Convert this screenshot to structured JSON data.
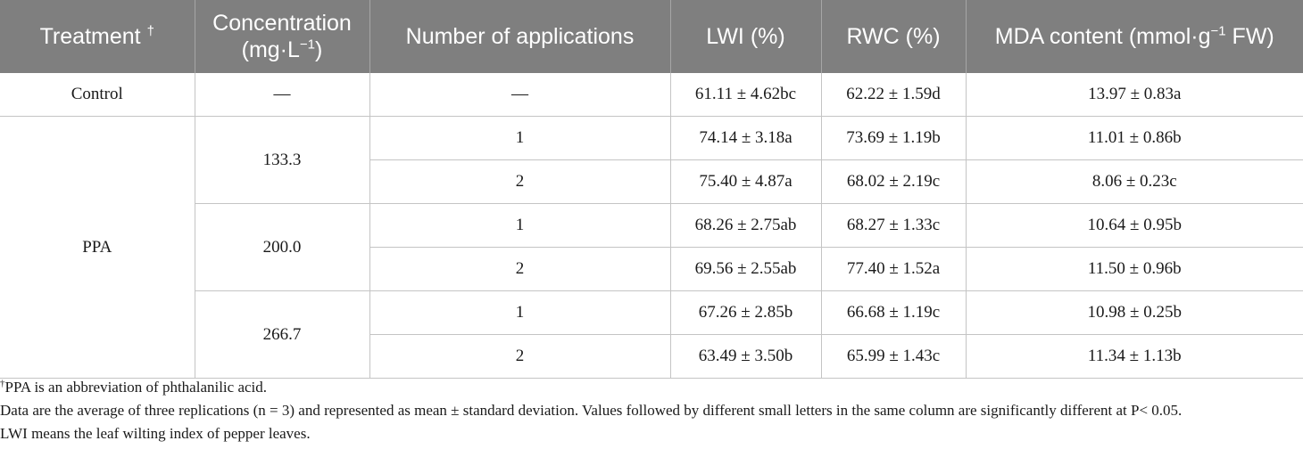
{
  "table": {
    "headers": {
      "treatment": "Treatment",
      "treatment_mark": "†",
      "concentration": "Concentration",
      "concentration_unit": "(mg·L",
      "concentration_exp": "−1",
      "concentration_close": ")",
      "applications": "Number of applications",
      "lwi": "LWI (%)",
      "rwc": "RWC (%)",
      "mda": "MDA content (mmol·g",
      "mda_exp": "−1",
      "mda_tail": " FW)"
    },
    "control": {
      "treatment": "Control",
      "concentration": "—",
      "applications": "—",
      "lwi": "61.11 ± 4.62bc",
      "rwc": "62.22 ± 1.59d",
      "mda": "13.97 ± 0.83a"
    },
    "ppa": {
      "treatment": "PPA",
      "groups": [
        {
          "concentration": "133.3",
          "rows": [
            {
              "applications": "1",
              "lwi": "74.14 ± 3.18a",
              "rwc": "73.69 ± 1.19b",
              "mda": "11.01 ± 0.86b"
            },
            {
              "applications": "2",
              "lwi": "75.40 ± 4.87a",
              "rwc": "68.02 ± 2.19c",
              "mda": "8.06 ± 0.23c"
            }
          ]
        },
        {
          "concentration": "200.0",
          "rows": [
            {
              "applications": "1",
              "lwi": "68.26 ± 2.75ab",
              "rwc": "68.27 ± 1.33c",
              "mda": "10.64 ± 0.95b"
            },
            {
              "applications": "2",
              "lwi": "69.56 ± 2.55ab",
              "rwc": "77.40 ± 1.52a",
              "mda": "11.50 ± 0.96b"
            }
          ]
        },
        {
          "concentration": "266.7",
          "rows": [
            {
              "applications": "1",
              "lwi": "67.26 ± 2.85b",
              "rwc": "66.68 ± 1.19c",
              "mda": "10.98 ± 0.25b"
            },
            {
              "applications": "2",
              "lwi": "63.49 ± 3.50b",
              "rwc": "65.99 ± 1.43c",
              "mda": "11.34 ± 1.13b"
            }
          ]
        }
      ]
    }
  },
  "footnotes": {
    "dagger": "†",
    "abbreviation": "PPA is an abbreviation of phthalanilic acid.",
    "data_note": "Data are the average of three replications (n = 3) and represented as mean ± standard deviation. Values followed by different small letters in the same column are significantly different at P< 0.05.",
    "lwi_note": "LWI means the leaf wilting index of pepper leaves."
  }
}
